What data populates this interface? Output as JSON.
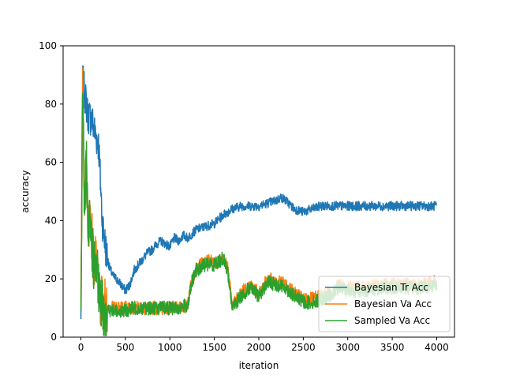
{
  "chart_data": {
    "type": "line",
    "title": "",
    "xlabel": "iteration",
    "ylabel": "accuracy",
    "xlim": [
      -200,
      4200
    ],
    "ylim": [
      0,
      100
    ],
    "xticks": [
      0,
      500,
      1000,
      1500,
      2000,
      2500,
      3000,
      3500,
      4000
    ],
    "yticks": [
      0,
      20,
      40,
      60,
      80,
      100
    ],
    "legend_position": "lower-right",
    "grid": false,
    "series": [
      {
        "name": "Bayesian Tr Acc",
        "color": "#1f77b4",
        "noise": 1.6,
        "x": [
          0,
          20,
          50,
          80,
          120,
          160,
          200,
          240,
          280,
          320,
          360,
          400,
          450,
          500,
          550,
          600,
          650,
          700,
          750,
          800,
          850,
          900,
          950,
          1000,
          1050,
          1100,
          1150,
          1200,
          1300,
          1400,
          1500,
          1600,
          1700,
          1800,
          1900,
          2000,
          2100,
          2200,
          2250,
          2300,
          2400,
          2500,
          2600,
          2700,
          2800,
          2900,
          3000,
          3200,
          3400,
          3600,
          3800,
          4000
        ],
        "values": [
          5,
          88,
          82,
          76,
          75,
          70,
          66,
          40,
          30,
          24,
          21,
          20,
          18,
          16,
          18,
          23,
          25,
          27,
          29,
          30,
          32,
          33,
          32,
          31,
          34,
          33,
          35,
          34,
          37,
          38,
          39,
          42,
          44,
          45,
          45,
          45,
          46,
          47,
          48,
          47,
          44,
          43,
          44,
          45,
          45,
          45,
          45,
          45,
          45,
          45,
          45,
          45
        ]
      },
      {
        "name": "Bayesian Va Acc",
        "color": "#ff7f0e",
        "noise": 2.4,
        "x": [
          0,
          20,
          40,
          60,
          80,
          100,
          140,
          180,
          220,
          260,
          300,
          400,
          500,
          600,
          700,
          800,
          900,
          1000,
          1100,
          1200,
          1250,
          1300,
          1350,
          1400,
          1450,
          1500,
          1550,
          1600,
          1650,
          1700,
          1750,
          1800,
          1900,
          2000,
          2100,
          2200,
          2300,
          2400,
          2500,
          2600,
          2700,
          2800,
          2900,
          3000,
          3200,
          3400,
          3600,
          3800,
          4000
        ],
        "values": [
          5,
          88,
          44,
          60,
          35,
          42,
          28,
          25,
          12,
          11,
          10,
          10,
          10,
          10,
          10,
          10,
          10,
          10,
          10,
          11,
          20,
          24,
          25,
          26,
          26,
          26,
          26,
          27,
          24,
          11,
          13,
          15,
          18,
          15,
          20,
          19,
          18,
          15,
          13,
          13,
          14,
          15,
          18,
          17,
          17,
          18,
          18,
          18,
          19
        ]
      },
      {
        "name": "Sampled Va Acc",
        "color": "#2ca02c",
        "noise": 2.4,
        "x": [
          0,
          20,
          40,
          60,
          80,
          100,
          140,
          180,
          220,
          260,
          300,
          400,
          500,
          600,
          700,
          800,
          900,
          1000,
          1100,
          1200,
          1250,
          1300,
          1350,
          1400,
          1450,
          1500,
          1550,
          1600,
          1650,
          1700,
          1750,
          1800,
          1900,
          2000,
          2100,
          2200,
          2300,
          2400,
          2500,
          2600,
          2700,
          2800,
          2900,
          3000,
          3200,
          3400,
          3600,
          3800,
          4000
        ],
        "values": [
          5,
          90,
          42,
          62,
          33,
          40,
          26,
          22,
          11,
          10,
          9,
          9,
          9,
          10,
          10,
          10,
          10,
          10,
          10,
          11,
          19,
          23,
          24,
          25,
          25,
          25,
          26,
          27,
          23,
          10,
          12,
          14,
          17,
          14,
          19,
          18,
          17,
          14,
          12,
          12,
          13,
          14,
          17,
          16,
          16,
          17,
          17,
          17,
          18
        ]
      }
    ]
  }
}
